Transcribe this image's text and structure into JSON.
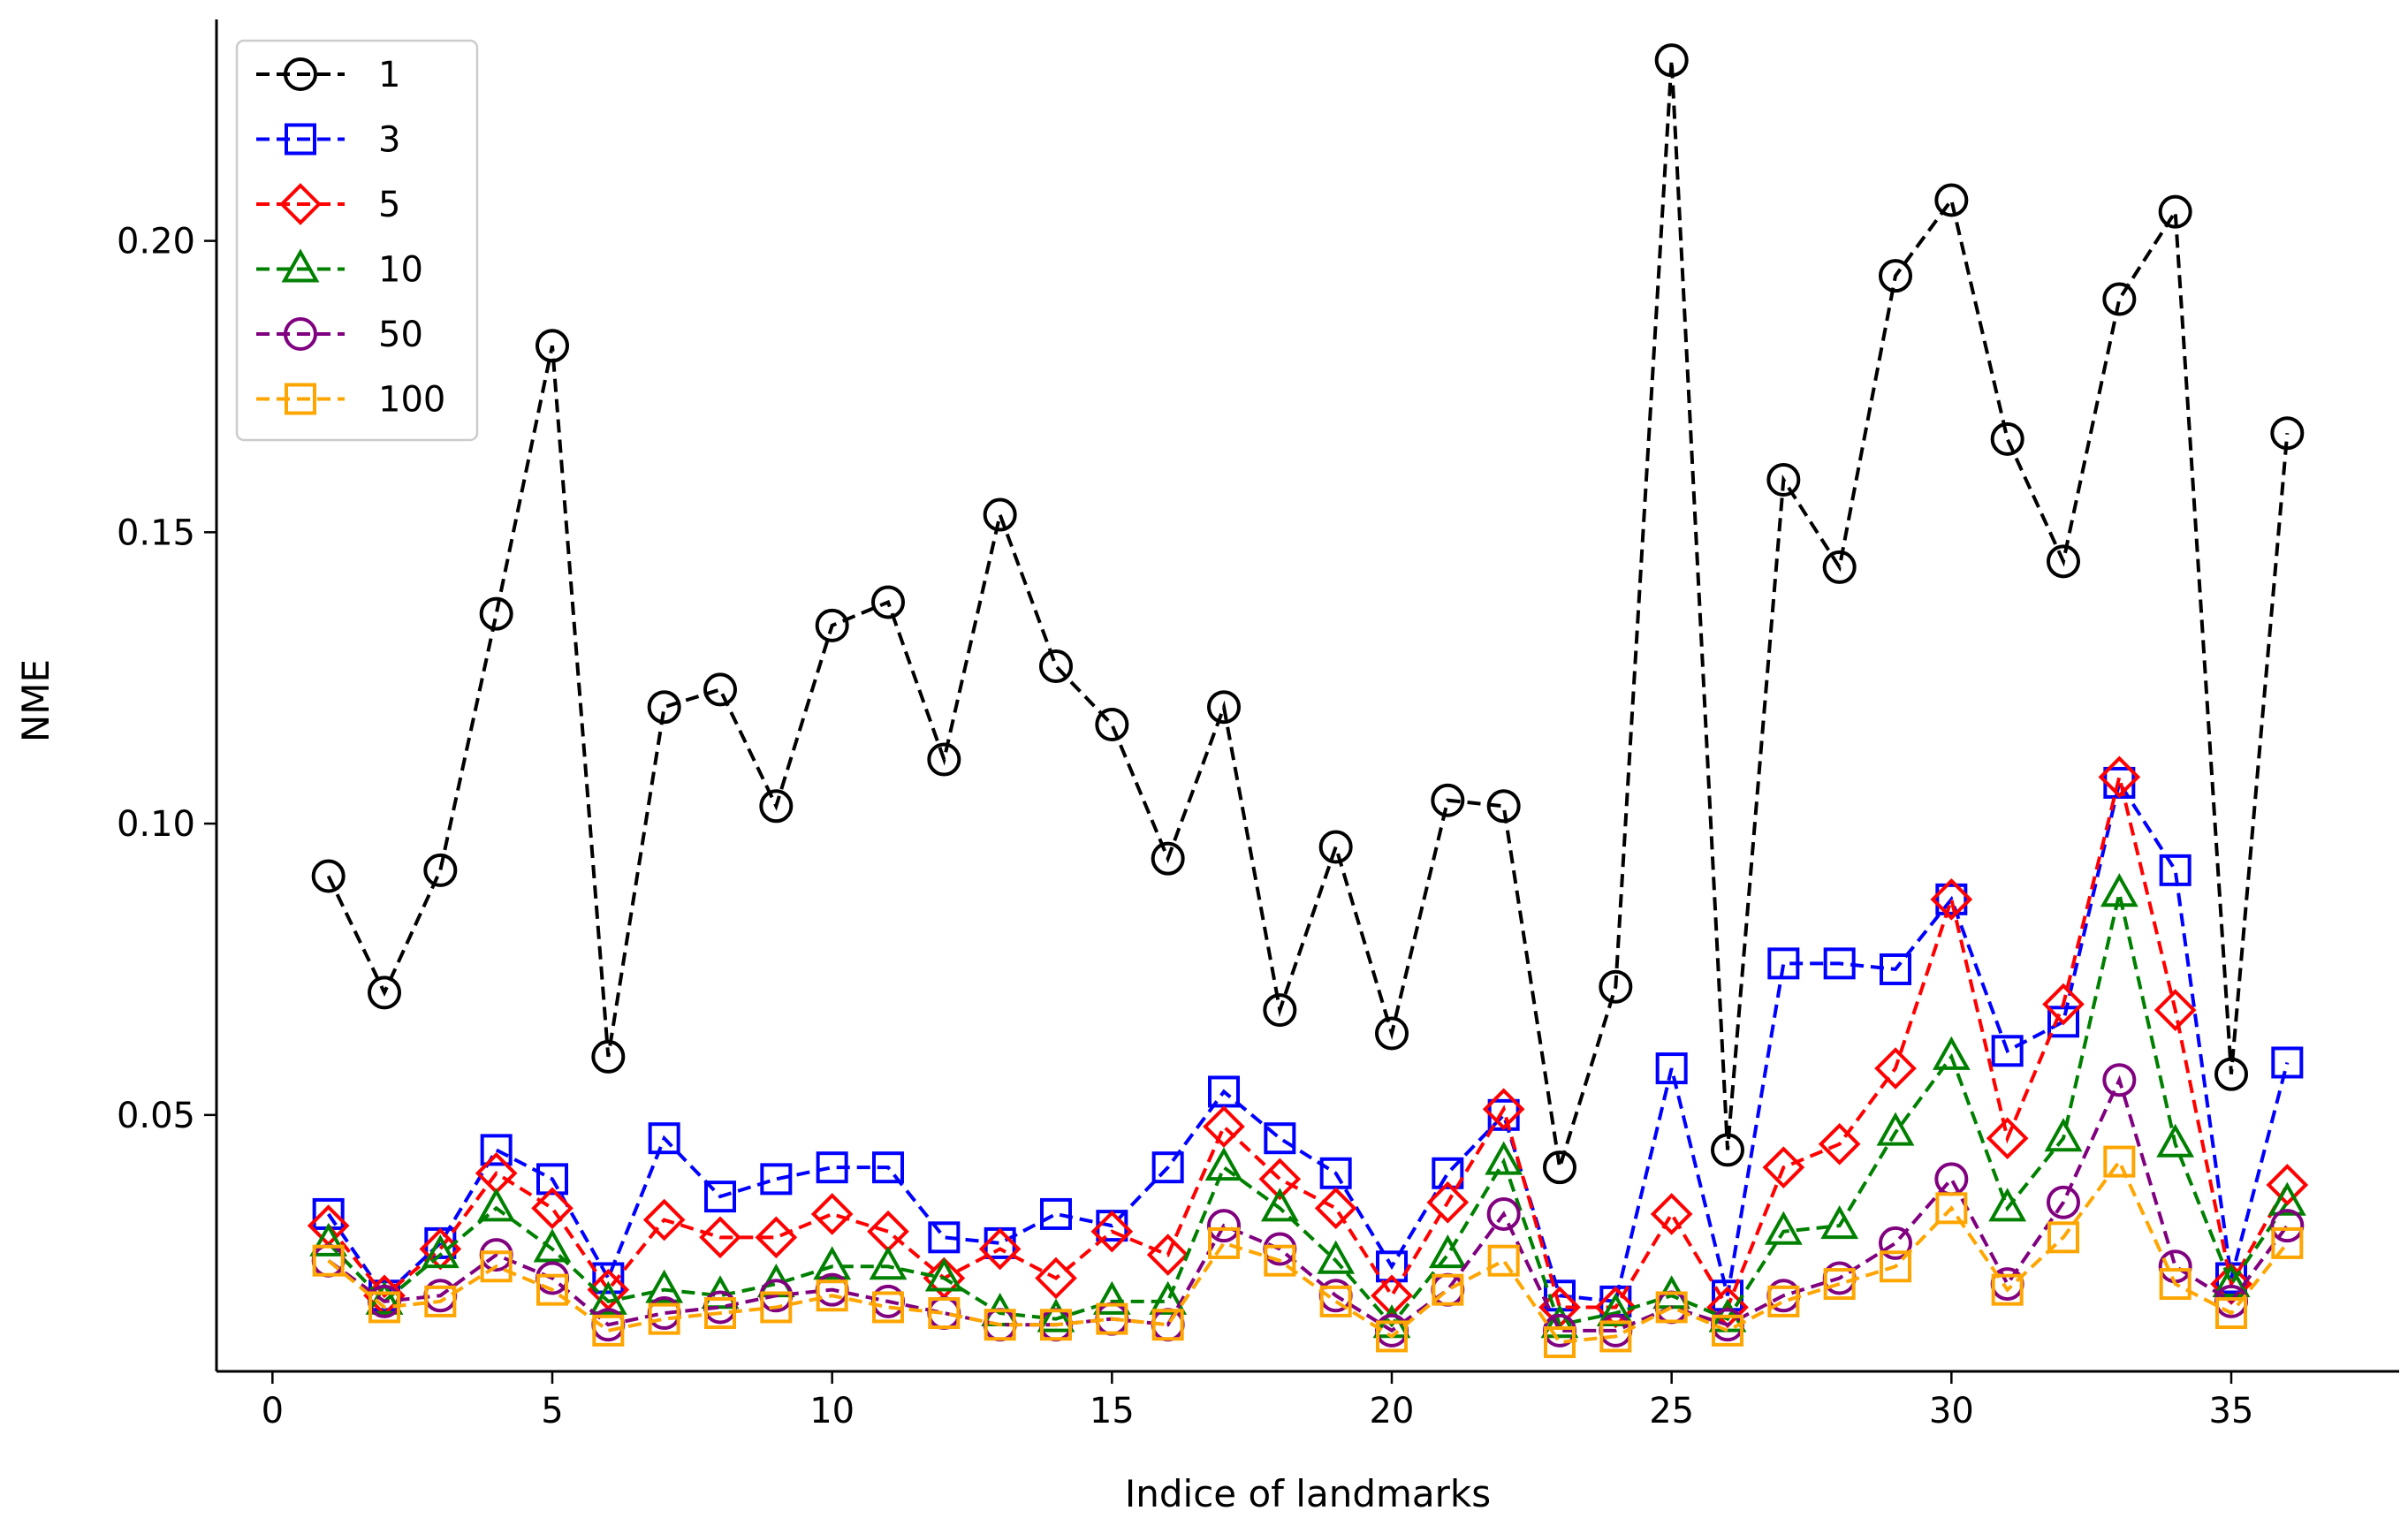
{
  "chart_data": {
    "type": "line",
    "title": "",
    "xlabel": "Indice of landmarks",
    "ylabel": "NME",
    "xlim": [
      -1,
      38
    ],
    "ylim": [
      0.006,
      0.238
    ],
    "xticks": [
      0,
      5,
      10,
      15,
      20,
      25,
      30,
      35
    ],
    "yticks": [
      0.05,
      0.1,
      0.15,
      0.2
    ],
    "ytick_labels": [
      "0.05",
      "0.10",
      "0.15",
      "0.20"
    ],
    "grid": false,
    "legend_position": "top-left",
    "x": [
      1,
      2,
      3,
      4,
      5,
      6,
      7,
      8,
      9,
      10,
      11,
      12,
      13,
      14,
      15,
      16,
      17,
      18,
      19,
      20,
      21,
      22,
      23,
      24,
      25,
      26,
      27,
      28,
      29,
      30,
      31,
      32,
      33,
      34,
      35,
      36
    ],
    "series": [
      {
        "name": "1",
        "color": "#000000",
        "marker": "circle",
        "values": [
          0.091,
          0.071,
          0.092,
          0.136,
          0.182,
          0.06,
          0.12,
          0.123,
          0.103,
          0.134,
          0.138,
          0.111,
          0.153,
          0.127,
          0.117,
          0.094,
          0.12,
          0.068,
          0.096,
          0.064,
          0.104,
          0.103,
          0.041,
          0.072,
          0.231,
          0.044,
          0.159,
          0.144,
          0.194,
          0.207,
          0.166,
          0.145,
          0.19,
          0.205,
          0.057,
          0.167
        ]
      },
      {
        "name": "3",
        "color": "#0000ff",
        "marker": "square",
        "values": [
          0.033,
          0.019,
          0.028,
          0.044,
          0.039,
          0.022,
          0.046,
          0.036,
          0.039,
          0.041,
          0.041,
          0.029,
          0.028,
          0.033,
          0.031,
          0.041,
          0.054,
          0.046,
          0.04,
          0.024,
          0.04,
          0.05,
          0.019,
          0.018,
          0.058,
          0.019,
          0.076,
          0.076,
          0.075,
          0.087,
          0.061,
          0.066,
          0.107,
          0.092,
          0.022,
          0.059
        ]
      },
      {
        "name": "5",
        "color": "#ff0000",
        "marker": "diamond",
        "values": [
          0.031,
          0.019,
          0.027,
          0.04,
          0.034,
          0.02,
          0.032,
          0.029,
          0.029,
          0.033,
          0.03,
          0.022,
          0.027,
          0.022,
          0.03,
          0.026,
          0.048,
          0.039,
          0.034,
          0.019,
          0.035,
          0.051,
          0.017,
          0.017,
          0.033,
          0.017,
          0.041,
          0.045,
          0.058,
          0.087,
          0.046,
          0.069,
          0.108,
          0.068,
          0.021,
          0.038
        ]
      },
      {
        "name": "10",
        "color": "#008000",
        "marker": "triangle",
        "values": [
          0.028,
          0.018,
          0.026,
          0.034,
          0.027,
          0.018,
          0.02,
          0.019,
          0.021,
          0.024,
          0.024,
          0.022,
          0.016,
          0.015,
          0.018,
          0.018,
          0.041,
          0.034,
          0.025,
          0.014,
          0.026,
          0.042,
          0.014,
          0.016,
          0.019,
          0.015,
          0.03,
          0.031,
          0.047,
          0.06,
          0.034,
          0.046,
          0.088,
          0.045,
          0.021,
          0.035
        ]
      },
      {
        "name": "50",
        "color": "#800080",
        "marker": "circle",
        "values": [
          0.025,
          0.018,
          0.019,
          0.026,
          0.022,
          0.014,
          0.016,
          0.017,
          0.019,
          0.02,
          0.018,
          0.016,
          0.014,
          0.014,
          0.015,
          0.014,
          0.031,
          0.027,
          0.019,
          0.013,
          0.02,
          0.033,
          0.013,
          0.013,
          0.017,
          0.014,
          0.019,
          0.022,
          0.028,
          0.039,
          0.021,
          0.035,
          0.056,
          0.024,
          0.018,
          0.031
        ]
      },
      {
        "name": "100",
        "color": "#ffa500",
        "marker": "square",
        "values": [
          0.025,
          0.017,
          0.018,
          0.024,
          0.02,
          0.013,
          0.015,
          0.016,
          0.017,
          0.019,
          0.017,
          0.016,
          0.014,
          0.014,
          0.015,
          0.014,
          0.028,
          0.025,
          0.018,
          0.012,
          0.02,
          0.025,
          0.011,
          0.012,
          0.017,
          0.013,
          0.018,
          0.021,
          0.024,
          0.034,
          0.02,
          0.029,
          0.042,
          0.021,
          0.016,
          0.028
        ]
      }
    ]
  }
}
